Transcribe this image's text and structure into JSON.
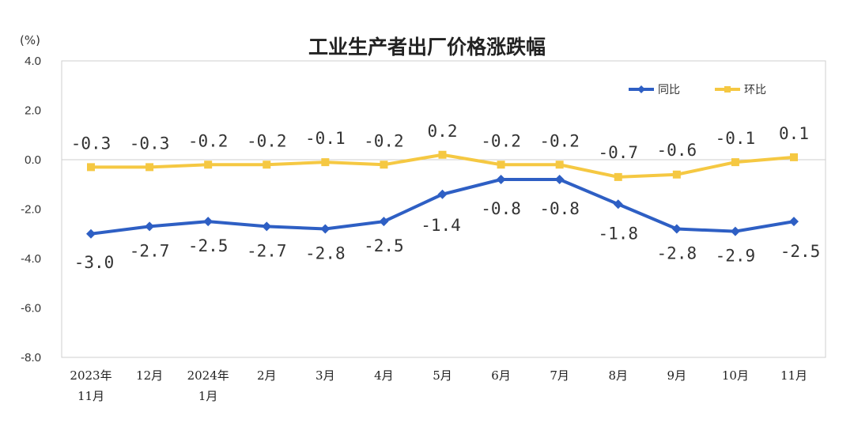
{
  "chart_data": {
    "type": "line",
    "title": "工业生产者出厂价格涨跌幅",
    "unit_label": "(%)",
    "ylim": [
      -8.0,
      4.0
    ],
    "y_ticks": [
      "4.0",
      "2.0",
      "0.0",
      "-2.0",
      "-4.0",
      "-6.0",
      "-8.0"
    ],
    "y_tick_values": [
      4,
      2,
      0,
      -2,
      -4,
      -6,
      -8
    ],
    "categories": [
      [
        "2023年",
        "11月"
      ],
      [
        "12月"
      ],
      [
        "2024年",
        "1月"
      ],
      [
        "2月"
      ],
      [
        "3月"
      ],
      [
        "4月"
      ],
      [
        "5月"
      ],
      [
        "6月"
      ],
      [
        "7月"
      ],
      [
        "8月"
      ],
      [
        "9月"
      ],
      [
        "10月"
      ],
      [
        "11月"
      ]
    ],
    "series": [
      {
        "name": "同比",
        "color": "#2e5fc4",
        "marker": "diamond",
        "values": [
          -3.0,
          -2.7,
          -2.5,
          -2.7,
          -2.8,
          -2.5,
          -1.4,
          -0.8,
          -0.8,
          -1.8,
          -2.8,
          -2.9,
          -2.5
        ],
        "labels": [
          "-3.0",
          "-2.7",
          "-2.5",
          "-2.7",
          "-2.8",
          "-2.5",
          "-1.4",
          "-0.8",
          "-0.8",
          "-1.8",
          "-2.8",
          "-2.9",
          "-2.5"
        ]
      },
      {
        "name": "环比",
        "color": "#f5c842",
        "marker": "square",
        "values": [
          -0.3,
          -0.3,
          -0.2,
          -0.2,
          -0.1,
          -0.2,
          0.2,
          -0.2,
          -0.2,
          -0.7,
          -0.6,
          -0.1,
          0.1
        ],
        "labels": [
          "-0.3",
          "-0.3",
          "-0.2",
          "-0.2",
          "-0.1",
          "-0.2",
          "0.2",
          "-0.2",
          "-0.2",
          "-0.7",
          "-0.6",
          "-0.1",
          "0.1"
        ]
      }
    ],
    "legend_position": "top-right",
    "grid": false
  }
}
